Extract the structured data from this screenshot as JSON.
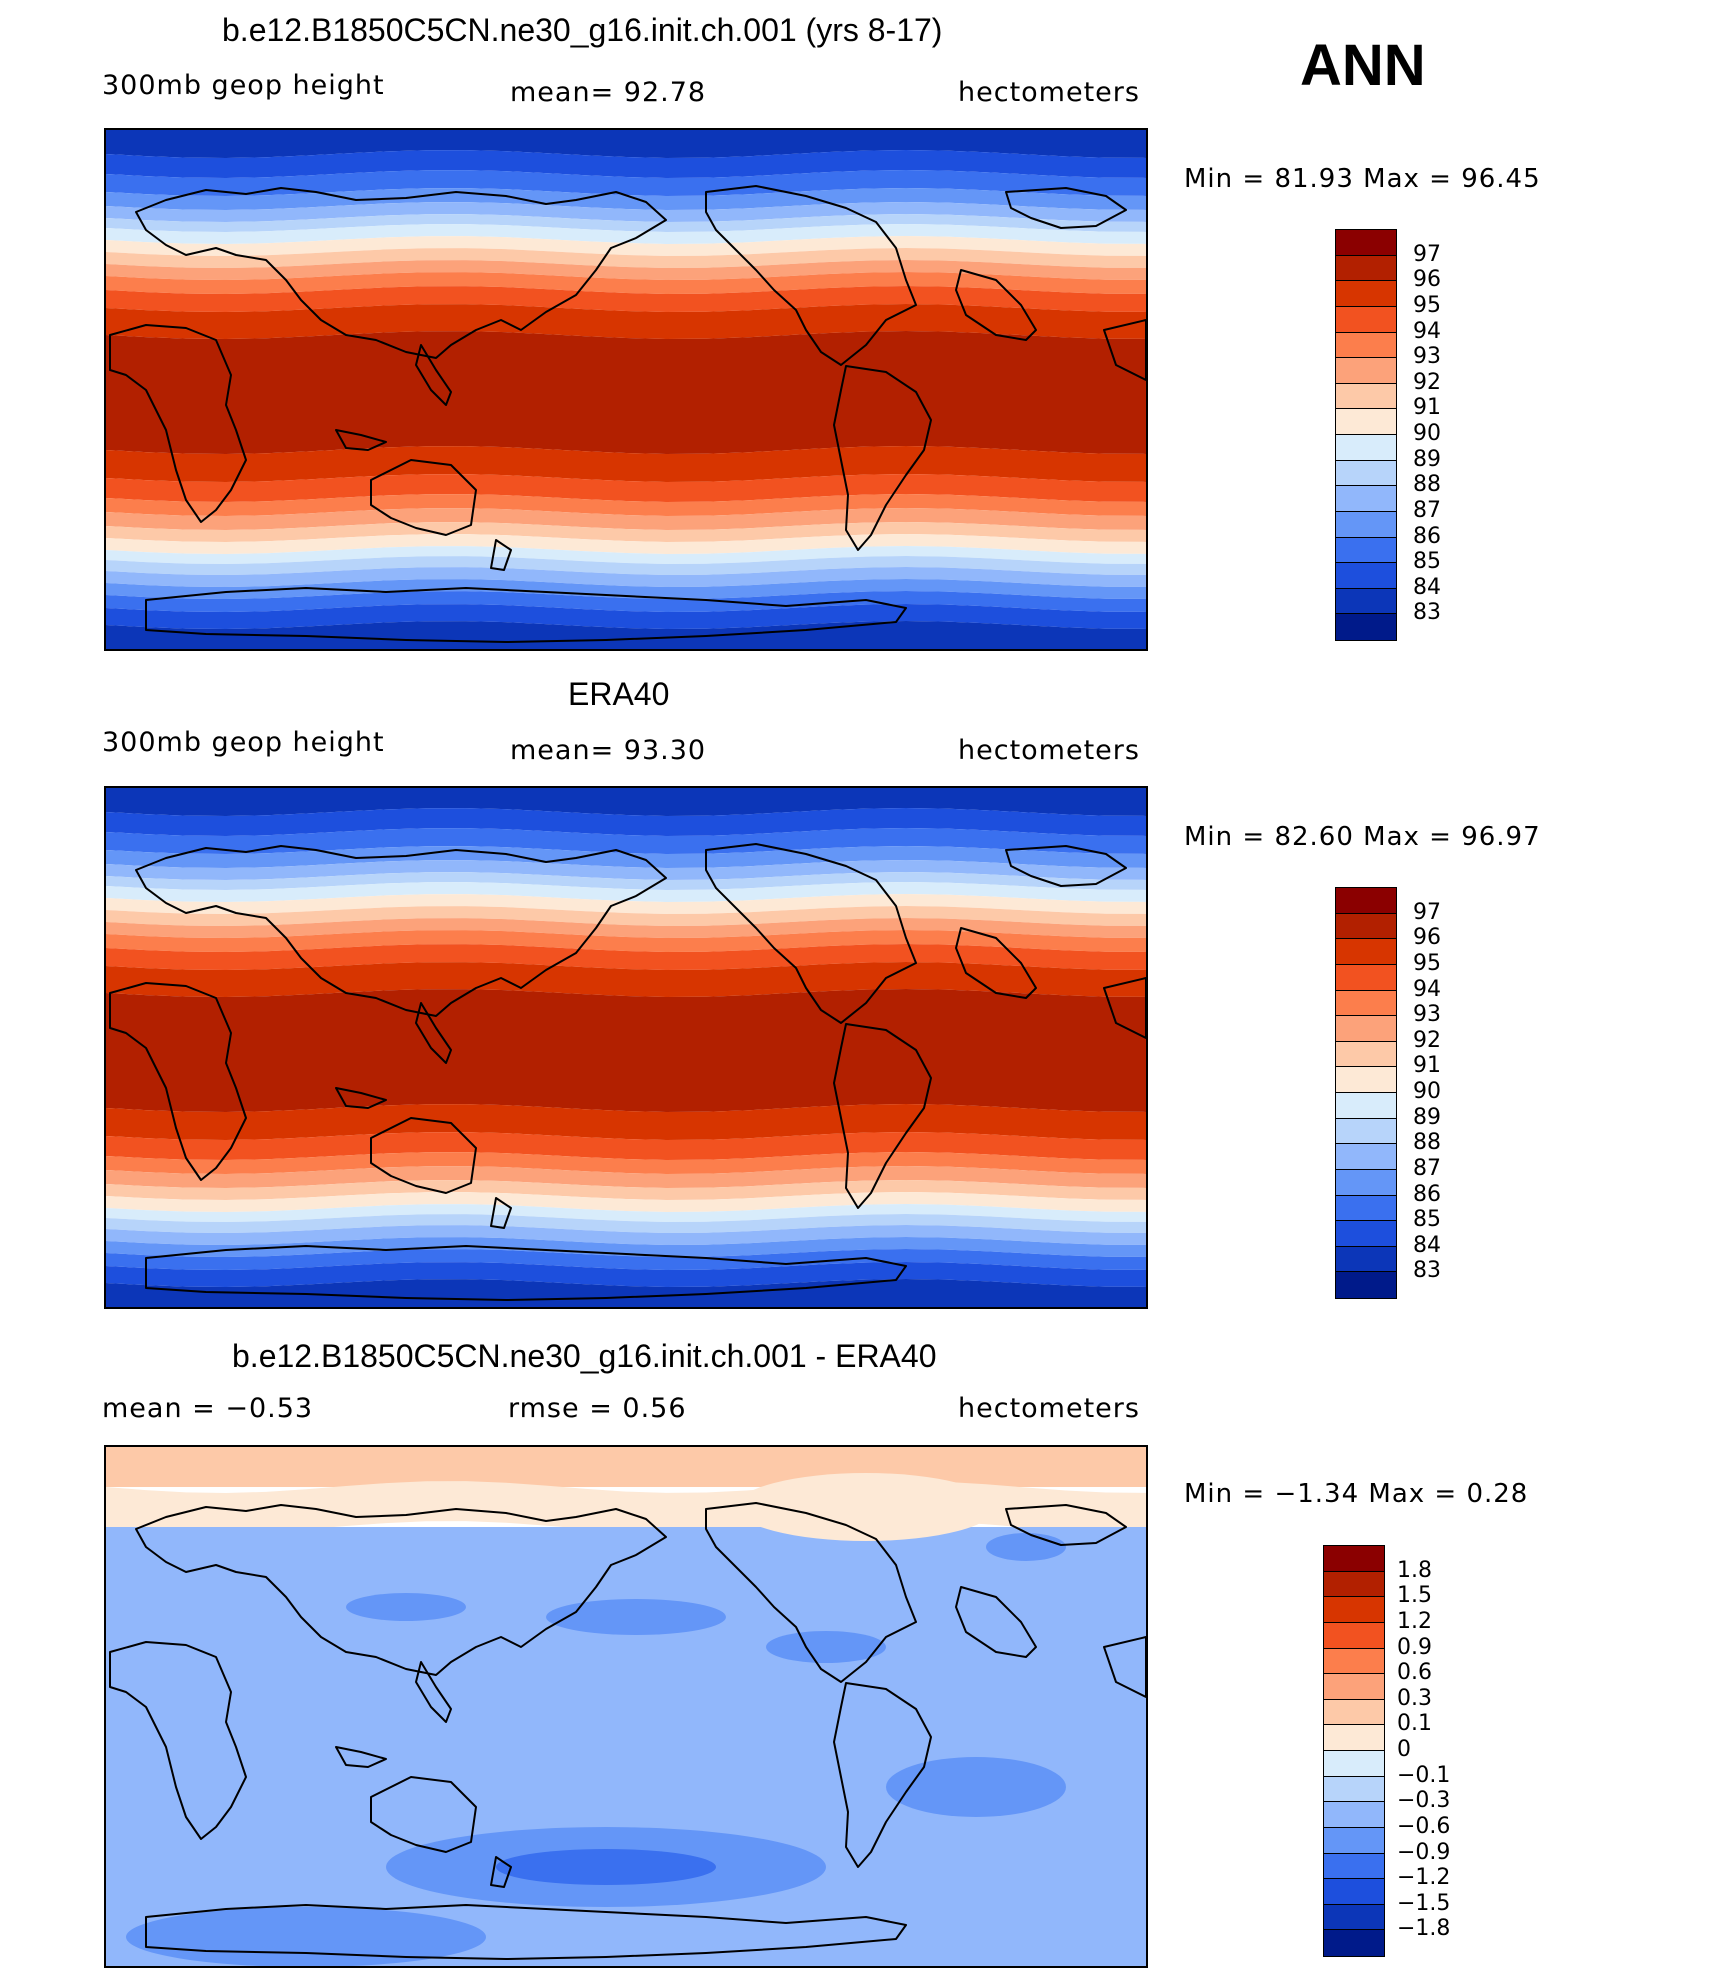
{
  "season_label": "ANN",
  "panels": [
    {
      "title": "b.e12.B1850C5CN.ne30_g16.init.ch.001 (yrs 8-17)",
      "left_label": "300mb geop height",
      "center_label": "mean=   92.78",
      "right_label": "hectometers",
      "minmax": "Min =   81.93 Max =   96.45",
      "colorbar": {
        "colors": [
          "#8b0000",
          "#b22000",
          "#d73500",
          "#f25220",
          "#fc7e4c",
          "#fca27a",
          "#fdc9a8",
          "#fde9d6",
          "#d8ecfb",
          "#b7d4fa",
          "#91b7fb",
          "#6496f7",
          "#3a70ef",
          "#1d4fdd",
          "#0c36b8",
          "#001a8a"
        ],
        "ticks": [
          "97",
          "96",
          "95",
          "94",
          "93",
          "92",
          "91",
          "90",
          "89",
          "88",
          "87",
          "86",
          "85",
          "84",
          "83"
        ]
      }
    },
    {
      "title": "ERA40",
      "left_label": "300mb geop height",
      "center_label": "mean=   93.30",
      "right_label": "hectometers",
      "minmax": "Min =   82.60 Max =   96.97",
      "colorbar": {
        "colors": [
          "#8b0000",
          "#b22000",
          "#d73500",
          "#f25220",
          "#fc7e4c",
          "#fca27a",
          "#fdc9a8",
          "#fde9d6",
          "#d8ecfb",
          "#b7d4fa",
          "#91b7fb",
          "#6496f7",
          "#3a70ef",
          "#1d4fdd",
          "#0c36b8",
          "#001a8a"
        ],
        "ticks": [
          "97",
          "96",
          "95",
          "94",
          "93",
          "92",
          "91",
          "90",
          "89",
          "88",
          "87",
          "86",
          "85",
          "84",
          "83"
        ]
      }
    },
    {
      "title": "b.e12.B1850C5CN.ne30_g16.init.ch.001 - ERA40",
      "left_label": "mean =   −0.53",
      "center_label": "rmse =    0.56",
      "right_label": "hectometers",
      "minmax": "Min =  −1.34 Max =    0.28",
      "colorbar": {
        "colors": [
          "#8b0000",
          "#b22000",
          "#d73500",
          "#f25220",
          "#fc7e4c",
          "#fca27a",
          "#fdc9a8",
          "#fde9d6",
          "#d8ecfb",
          "#b7d4fa",
          "#91b7fb",
          "#6496f7",
          "#3a70ef",
          "#1d4fdd",
          "#0c36b8",
          "#001a8a"
        ],
        "ticks": [
          "1.8",
          "1.5",
          "1.2",
          "0.9",
          "0.6",
          "0.3",
          "0.1",
          "0",
          "−0.1",
          "−0.3",
          "−0.6",
          "−0.9",
          "−1.2",
          "−1.5",
          "−1.8"
        ]
      }
    }
  ]
}
